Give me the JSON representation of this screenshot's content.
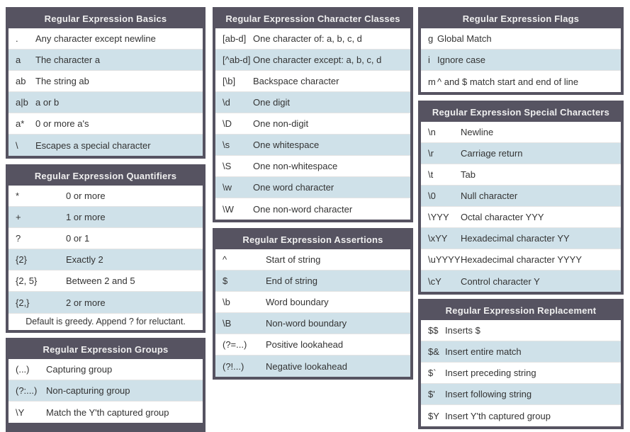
{
  "colors": {
    "table_dark": "#565361",
    "row_alt_blue": "#cfe1e9",
    "row_white": "#ffffff",
    "text": "#333333",
    "header_text": "#efefef",
    "row_separator": "#e4e4e4"
  },
  "tables": {
    "basics": {
      "title": "Regular Expression Basics",
      "rows": [
        {
          "key": ".",
          "desc": "Any character except newline"
        },
        {
          "key": "a",
          "desc": "The character a"
        },
        {
          "key": "ab",
          "desc": "The string ab"
        },
        {
          "key": "a|b",
          "desc": "a or b"
        },
        {
          "key": "a*",
          "desc": "0 or more a's"
        },
        {
          "key": "\\",
          "desc": "Escapes a special character"
        }
      ]
    },
    "quantifiers": {
      "title": "Regular Expression Quantifiers",
      "rows": [
        {
          "key": "*",
          "desc": "0 or more"
        },
        {
          "key": "+",
          "desc": "1 or more"
        },
        {
          "key": "?",
          "desc": "0 or 1"
        },
        {
          "key": "{2}",
          "desc": "Exactly 2"
        },
        {
          "key": "{2, 5}",
          "desc": "Between 2 and 5"
        },
        {
          "key": "{2,}",
          "desc": "2 or more"
        }
      ],
      "footnote": "Default is greedy. Append ? for reluctant."
    },
    "groups": {
      "title": "Regular Expression Groups",
      "rows": [
        {
          "key": "(...)",
          "desc": "Capturing group"
        },
        {
          "key": "(?:...)",
          "desc": "Non-capturing group"
        },
        {
          "key": "\\Y",
          "desc": "Match the Y'th captured group"
        }
      ]
    },
    "character_classes": {
      "title": "Regular Expression Character Classes",
      "rows": [
        {
          "key": "[ab-d]",
          "desc": "One character of: a, b, c, d"
        },
        {
          "key": "[^ab-d]",
          "desc": "One character except: a, b, c, d"
        },
        {
          "key": "[\\b]",
          "desc": "Backspace character"
        },
        {
          "key": "\\d",
          "desc": "One digit"
        },
        {
          "key": "\\D",
          "desc": "One non-digit"
        },
        {
          "key": "\\s",
          "desc": "One whitespace"
        },
        {
          "key": "\\S",
          "desc": "One non-whitespace"
        },
        {
          "key": "\\w",
          "desc": "One word character"
        },
        {
          "key": "\\W",
          "desc": "One non-word character"
        }
      ]
    },
    "assertions": {
      "title": "Regular Expression Assertions",
      "rows": [
        {
          "key": "^",
          "desc": "Start of string"
        },
        {
          "key": "$",
          "desc": "End of string"
        },
        {
          "key": "\\b",
          "desc": "Word boundary"
        },
        {
          "key": "\\B",
          "desc": "Non-word boundary"
        },
        {
          "key": "(?=...)",
          "desc": "Positive lookahead"
        },
        {
          "key": "(?!...)",
          "desc": "Negative lookahead"
        }
      ]
    },
    "flags": {
      "title": "Regular Expression Flags",
      "rows": [
        {
          "key": "g",
          "desc": "Global Match"
        },
        {
          "key": "i",
          "desc": "Ignore case"
        },
        {
          "key": "m",
          "desc": "^ and $ match start and end of line"
        }
      ]
    },
    "special_characters": {
      "title": "Regular Expression Special Characters",
      "rows": [
        {
          "key": "\\n",
          "desc": "Newline"
        },
        {
          "key": "\\r",
          "desc": "Carriage return"
        },
        {
          "key": "\\t",
          "desc": "Tab"
        },
        {
          "key": "\\0",
          "desc": "Null character"
        },
        {
          "key": "\\YYY",
          "desc": "Octal character YYY"
        },
        {
          "key": "\\xYY",
          "desc": "Hexadecimal character YY"
        },
        {
          "key": "\\uYYYY",
          "desc": "Hexadecimal character YYYY"
        },
        {
          "key": "\\cY",
          "desc": "Control character Y"
        }
      ]
    },
    "replacement": {
      "title": "Regular Expression Replacement",
      "rows": [
        {
          "key": "$$",
          "desc": "Inserts $"
        },
        {
          "key": "$&",
          "desc": "Insert entire match"
        },
        {
          "key": "$`",
          "desc": "Insert preceding string"
        },
        {
          "key": "$'",
          "desc": "Insert following string"
        },
        {
          "key": "$Y",
          "desc": "Insert Y'th captured group"
        }
      ]
    }
  }
}
